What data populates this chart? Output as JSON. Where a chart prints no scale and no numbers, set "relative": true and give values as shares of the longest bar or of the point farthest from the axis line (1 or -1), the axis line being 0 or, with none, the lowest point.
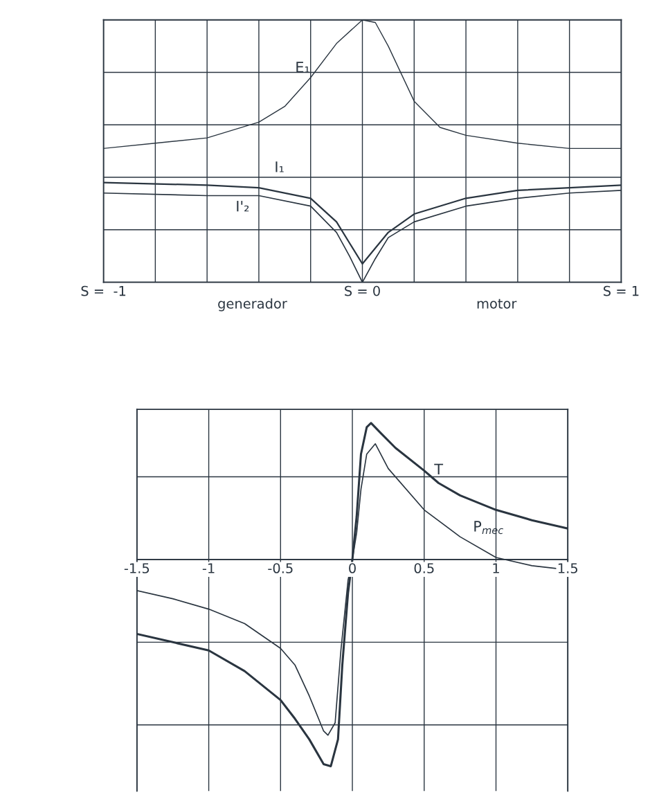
{
  "chart_data": [
    {
      "type": "line",
      "relative": true,
      "xlim": [
        -1,
        1
      ],
      "xticks": [
        {
          "value": -1,
          "label": "S =  -1"
        },
        {
          "value": 0,
          "label": "S = 0"
        },
        {
          "value": 1,
          "label": "S = 1"
        }
      ],
      "grid": true,
      "legend": false,
      "marker": "none",
      "line_style": "solid",
      "annotations": [
        "generador",
        "motor"
      ],
      "series": [
        {
          "name": "E₁",
          "color": "#2a3540",
          "x": [
            -1,
            -0.8,
            -0.6,
            -0.4,
            -0.3,
            -0.2,
            -0.1,
            0,
            0.05,
            0.1,
            0.2,
            0.3,
            0.4,
            0.6,
            0.8,
            1
          ],
          "values": [
            0.51,
            0.53,
            0.55,
            0.61,
            0.67,
            0.78,
            0.91,
            1.0,
            0.99,
            0.9,
            0.69,
            0.59,
            0.56,
            0.53,
            0.51,
            0.51
          ]
        },
        {
          "name": "I₁",
          "color": "#2a3540",
          "x": [
            -1,
            -0.6,
            -0.4,
            -0.2,
            -0.1,
            -0.05,
            0,
            0.05,
            0.1,
            0.2,
            0.4,
            0.6,
            0.8,
            1
          ],
          "values": [
            0.38,
            0.37,
            0.36,
            0.32,
            0.23,
            0.15,
            0.07,
            0.13,
            0.19,
            0.26,
            0.32,
            0.35,
            0.36,
            0.37
          ]
        },
        {
          "name": "I'₂",
          "color": "#2a3540",
          "x": [
            -1,
            -0.6,
            -0.4,
            -0.2,
            -0.1,
            -0.05,
            0,
            0.05,
            0.1,
            0.2,
            0.4,
            0.6,
            0.8,
            1
          ],
          "values": [
            0.34,
            0.33,
            0.33,
            0.29,
            0.19,
            0.1,
            0.0,
            0.09,
            0.17,
            0.23,
            0.29,
            0.32,
            0.34,
            0.35
          ]
        }
      ]
    },
    {
      "type": "line",
      "relative": true,
      "xlim": [
        -1.5,
        1.5
      ],
      "xticks": [
        -1.5,
        -1,
        -0.5,
        0,
        0.5,
        1,
        1.5
      ],
      "grid": true,
      "legend": false,
      "marker": "none",
      "line_style": "solid",
      "series": [
        {
          "name": "T",
          "color": "#2a3540",
          "x": [
            -1.5,
            -1.25,
            -1.0,
            -0.75,
            -0.5,
            -0.4,
            -0.3,
            -0.2,
            -0.15,
            -0.1,
            -0.07,
            -0.03,
            0,
            0.03,
            0.06,
            0.1,
            0.13,
            0.2,
            0.3,
            0.5,
            0.6,
            0.75,
            1.0,
            1.25,
            1.5
          ],
          "values": [
            -0.36,
            -0.4,
            -0.44,
            -0.54,
            -0.68,
            -0.77,
            -0.87,
            -0.99,
            -1.0,
            -0.87,
            -0.51,
            -0.16,
            0,
            0.21,
            0.51,
            0.64,
            0.66,
            0.61,
            0.54,
            0.43,
            0.37,
            0.31,
            0.24,
            0.19,
            0.15
          ]
        },
        {
          "name": "P$_{mec}$",
          "color": "#2a3540",
          "x": [
            -1.5,
            -1.25,
            -1.0,
            -0.75,
            -0.5,
            -0.4,
            -0.3,
            -0.2,
            -0.17,
            -0.12,
            -0.08,
            -0.03,
            0,
            0.03,
            0.06,
            0.1,
            0.16,
            0.25,
            0.5,
            0.75,
            1.0,
            1.25,
            1.5
          ],
          "values": [
            -0.15,
            -0.19,
            -0.24,
            -0.31,
            -0.43,
            -0.51,
            -0.66,
            -0.83,
            -0.85,
            -0.79,
            -0.44,
            -0.1,
            0,
            0.13,
            0.34,
            0.51,
            0.56,
            0.44,
            0.24,
            0.11,
            0.01,
            -0.03,
            -0.05
          ]
        }
      ]
    }
  ]
}
